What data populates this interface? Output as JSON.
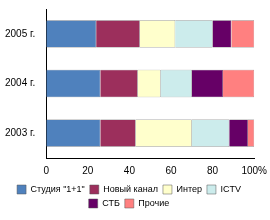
{
  "chart_data": {
    "type": "bar",
    "orientation": "horizontal",
    "stacked": true,
    "grid": false,
    "legend": "bottom",
    "categories": [
      "2005 г.",
      "2004 г.",
      "2003 г."
    ],
    "series": [
      {
        "name": "Студия \"1+1\"",
        "color": "#4f81bd",
        "values": [
          24,
          26,
          26
        ]
      },
      {
        "name": "Новый канал",
        "color": "#9c2f5c",
        "values": [
          21,
          18,
          17
        ]
      },
      {
        "name": "Интер",
        "color": "#ffffcc",
        "values": [
          17,
          11,
          27
        ]
      },
      {
        "name": "ICTV",
        "color": "#ccecec",
        "values": [
          18,
          15,
          18
        ]
      },
      {
        "name": "СТБ",
        "color": "#660066",
        "values": [
          9,
          15,
          9
        ]
      },
      {
        "name": "Прочие",
        "color": "#ff8080",
        "values": [
          11,
          15,
          3
        ]
      }
    ],
    "xlim": [
      0,
      100
    ],
    "xticks": [
      0,
      20,
      40,
      60,
      80,
      {
        "value": 100,
        "label": "100%"
      }
    ]
  }
}
